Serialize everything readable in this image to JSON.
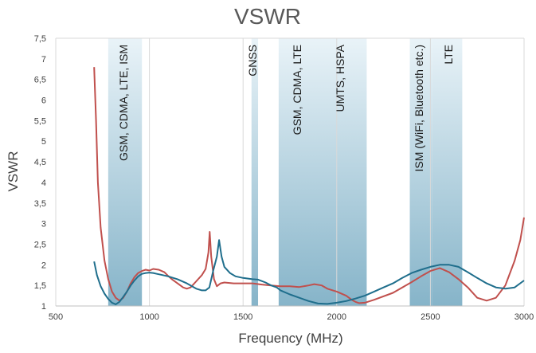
{
  "chart_data": {
    "type": "line",
    "title": "VSWR",
    "xlabel": "Frequency (MHz)",
    "ylabel": "VSWR",
    "xlim": [
      500,
      3000
    ],
    "ylim": [
      1,
      7.5
    ],
    "xticks": [
      500,
      1000,
      1500,
      2000,
      2500,
      3000
    ],
    "yticks": [
      "1",
      "1,5",
      "2",
      "2,5",
      "3",
      "3,5",
      "4",
      "4,5",
      "5",
      "5,5",
      "6",
      "6,5",
      "7",
      "7,5"
    ],
    "grid": "vertical",
    "bands": [
      {
        "label": "GSM, CDMA, LTE, ISM",
        "x0": 780,
        "x1": 960
      },
      {
        "label": "GNSS",
        "x0": 1545,
        "x1": 1580
      },
      {
        "label": "GSM, CDMA, LTE",
        "x0": 1690,
        "x1": 2000
      },
      {
        "label": "UMTS, HSPA",
        "x0": 2000,
        "x1": 2160
      },
      {
        "label": "ISM (WiFi, Bluetooth etc.)",
        "x0": 2390,
        "x1": 2510
      },
      {
        "label": "LTE",
        "x0": 2510,
        "x1": 2670
      }
    ],
    "series": [
      {
        "color": "#c0504d",
        "points": [
          [
            705,
            6.8
          ],
          [
            715,
            5.5
          ],
          [
            725,
            4.0
          ],
          [
            740,
            2.9
          ],
          [
            760,
            2.1
          ],
          [
            780,
            1.65
          ],
          [
            800,
            1.35
          ],
          [
            820,
            1.2
          ],
          [
            840,
            1.13
          ],
          [
            860,
            1.2
          ],
          [
            880,
            1.35
          ],
          [
            900,
            1.55
          ],
          [
            920,
            1.7
          ],
          [
            940,
            1.8
          ],
          [
            960,
            1.85
          ],
          [
            980,
            1.88
          ],
          [
            1000,
            1.86
          ],
          [
            1020,
            1.9
          ],
          [
            1050,
            1.88
          ],
          [
            1080,
            1.82
          ],
          [
            1100,
            1.73
          ],
          [
            1120,
            1.65
          ],
          [
            1150,
            1.55
          ],
          [
            1180,
            1.45
          ],
          [
            1200,
            1.42
          ],
          [
            1220,
            1.45
          ],
          [
            1250,
            1.6
          ],
          [
            1280,
            1.75
          ],
          [
            1300,
            1.9
          ],
          [
            1315,
            2.3
          ],
          [
            1322,
            2.8
          ],
          [
            1330,
            2.2
          ],
          [
            1345,
            1.65
          ],
          [
            1360,
            1.48
          ],
          [
            1380,
            1.55
          ],
          [
            1400,
            1.57
          ],
          [
            1450,
            1.55
          ],
          [
            1500,
            1.55
          ],
          [
            1550,
            1.55
          ],
          [
            1600,
            1.52
          ],
          [
            1650,
            1.5
          ],
          [
            1700,
            1.48
          ],
          [
            1750,
            1.48
          ],
          [
            1800,
            1.46
          ],
          [
            1850,
            1.5
          ],
          [
            1880,
            1.53
          ],
          [
            1920,
            1.5
          ],
          [
            1950,
            1.42
          ],
          [
            2000,
            1.35
          ],
          [
            2050,
            1.25
          ],
          [
            2080,
            1.15
          ],
          [
            2100,
            1.1
          ],
          [
            2120,
            1.07
          ],
          [
            2150,
            1.08
          ],
          [
            2200,
            1.15
          ],
          [
            2300,
            1.32
          ],
          [
            2400,
            1.58
          ],
          [
            2450,
            1.72
          ],
          [
            2500,
            1.85
          ],
          [
            2550,
            1.92
          ],
          [
            2600,
            1.82
          ],
          [
            2650,
            1.65
          ],
          [
            2700,
            1.45
          ],
          [
            2750,
            1.2
          ],
          [
            2800,
            1.13
          ],
          [
            2850,
            1.2
          ],
          [
            2900,
            1.5
          ],
          [
            2950,
            2.1
          ],
          [
            2980,
            2.6
          ],
          [
            3000,
            3.15
          ]
        ]
      },
      {
        "color": "#1f6e8c",
        "points": [
          [
            705,
            2.08
          ],
          [
            720,
            1.75
          ],
          [
            740,
            1.48
          ],
          [
            760,
            1.3
          ],
          [
            780,
            1.17
          ],
          [
            800,
            1.08
          ],
          [
            820,
            1.04
          ],
          [
            840,
            1.1
          ],
          [
            860,
            1.22
          ],
          [
            880,
            1.35
          ],
          [
            900,
            1.5
          ],
          [
            920,
            1.62
          ],
          [
            940,
            1.72
          ],
          [
            960,
            1.78
          ],
          [
            980,
            1.8
          ],
          [
            1000,
            1.81
          ],
          [
            1020,
            1.8
          ],
          [
            1040,
            1.78
          ],
          [
            1060,
            1.76
          ],
          [
            1100,
            1.72
          ],
          [
            1150,
            1.65
          ],
          [
            1200,
            1.55
          ],
          [
            1250,
            1.42
          ],
          [
            1280,
            1.38
          ],
          [
            1300,
            1.38
          ],
          [
            1320,
            1.45
          ],
          [
            1340,
            1.85
          ],
          [
            1360,
            2.2
          ],
          [
            1372,
            2.6
          ],
          [
            1385,
            2.2
          ],
          [
            1400,
            1.95
          ],
          [
            1430,
            1.8
          ],
          [
            1460,
            1.72
          ],
          [
            1500,
            1.68
          ],
          [
            1550,
            1.65
          ],
          [
            1580,
            1.64
          ],
          [
            1620,
            1.57
          ],
          [
            1650,
            1.5
          ],
          [
            1680,
            1.45
          ],
          [
            1700,
            1.38
          ],
          [
            1750,
            1.28
          ],
          [
            1800,
            1.2
          ],
          [
            1850,
            1.12
          ],
          [
            1900,
            1.06
          ],
          [
            1950,
            1.05
          ],
          [
            2000,
            1.08
          ],
          [
            2050,
            1.12
          ],
          [
            2100,
            1.18
          ],
          [
            2150,
            1.25
          ],
          [
            2200,
            1.35
          ],
          [
            2250,
            1.45
          ],
          [
            2300,
            1.55
          ],
          [
            2350,
            1.68
          ],
          [
            2400,
            1.8
          ],
          [
            2450,
            1.88
          ],
          [
            2500,
            1.95
          ],
          [
            2550,
            2.0
          ],
          [
            2600,
            2.0
          ],
          [
            2650,
            1.95
          ],
          [
            2700,
            1.82
          ],
          [
            2750,
            1.68
          ],
          [
            2800,
            1.55
          ],
          [
            2850,
            1.45
          ],
          [
            2900,
            1.42
          ],
          [
            2950,
            1.45
          ],
          [
            3000,
            1.62
          ]
        ]
      }
    ]
  }
}
